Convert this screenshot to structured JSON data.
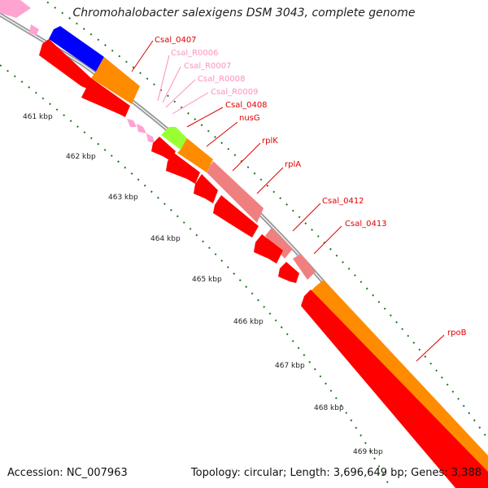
{
  "title": "Chromohalobacter salexigens DSM 3043, complete genome",
  "footer": {
    "accession": "Accession: NC_007963",
    "summary": "Topology: circular; Length: 3,696,649 bp; Genes: 3,388"
  },
  "colors": {
    "cds": "#ff0000",
    "rrna_trna": "#ff9fcf",
    "ribosomal": "#f08080",
    "blue_feature": "#0000ff",
    "orange_feature": "#ff8c00",
    "green_feature": "#99ff33",
    "backbone": "#888888",
    "tick": "#006600"
  },
  "kbp_labels": [
    "461 kbp",
    "462 kbp",
    "463 kbp",
    "464 kbp",
    "465 kbp",
    "466 kbp",
    "467 kbp",
    "468 kbp",
    "469 kbp"
  ],
  "gene_labels": [
    {
      "text": "Csal_0407",
      "color": "#e00000"
    },
    {
      "text": "Csal_R0006",
      "color": "#ff8fbf"
    },
    {
      "text": "Csal_R0007",
      "color": "#ff8fbf"
    },
    {
      "text": "Csal_R0008",
      "color": "#ff8fbf"
    },
    {
      "text": "Csal_R0009",
      "color": "#ff8fbf"
    },
    {
      "text": "Csal_0408",
      "color": "#e00000"
    },
    {
      "text": "nusG",
      "color": "#e00000"
    },
    {
      "text": "rplK",
      "color": "#e00000"
    },
    {
      "text": "rplA",
      "color": "#e00000"
    },
    {
      "text": "Csal_0412",
      "color": "#e00000"
    },
    {
      "text": "Csal_0413",
      "color": "#e00000"
    },
    {
      "text": "rpoB",
      "color": "#e00000"
    }
  ]
}
